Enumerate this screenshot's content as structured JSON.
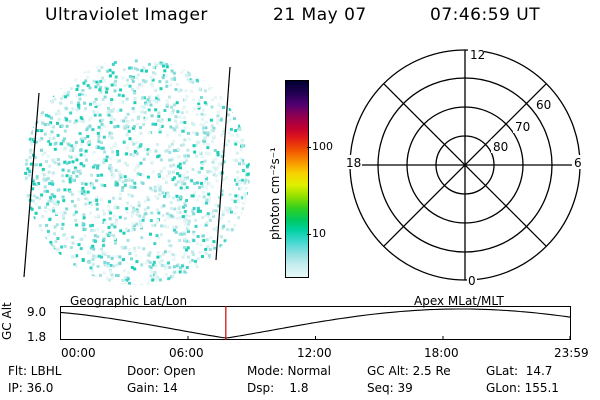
{
  "header": {
    "instrument": "Ultraviolet Imager",
    "date": "21 May 07",
    "time": "07:46:59 UT"
  },
  "colorbar": {
    "unit_label": "photon cm⁻²s⁻¹",
    "tick_100": "100",
    "tick_10": "10",
    "colors": [
      "#e8f8f8",
      "#c8eeee",
      "#90e0e0",
      "#40d8d0",
      "#00d0a0",
      "#00c860",
      "#30d020",
      "#90e000",
      "#e0f000",
      "#f8d000",
      "#f89000",
      "#f05000",
      "#e01818",
      "#c00030",
      "#900050",
      "#500070",
      "#200050",
      "#000030"
    ]
  },
  "polar": {
    "mlt_top": "12",
    "mlt_bottom": "0",
    "mlt_left": "18",
    "mlt_right": "6",
    "lat_60": "60",
    "lat_70": "70",
    "lat_80": "80"
  },
  "orbit": {
    "ylabel": "GC Alt",
    "ytick_high": "9.0",
    "ytick_low": "1.8",
    "left_title": "Geographic Lat/Lon",
    "right_title": "Apex MLat/MLT",
    "xticks": [
      "00:00",
      "06:00",
      "12:00",
      "18:00",
      "23:59"
    ],
    "marker_color": "#cc0000",
    "current_time_hours": 7.78
  },
  "status": {
    "flt": "Flt: LBHL",
    "ip": "IP: 36.0",
    "door": "Door: Open",
    "gain": "Gain: 14",
    "mode": "Mode: Normal",
    "dsp": "Dsp:    1.8",
    "gcalt": "GC Alt: 2.5 Re",
    "seq": "Seq: 39",
    "glat": "GLat:  14.7",
    "glon": "GLon: 155.1"
  }
}
